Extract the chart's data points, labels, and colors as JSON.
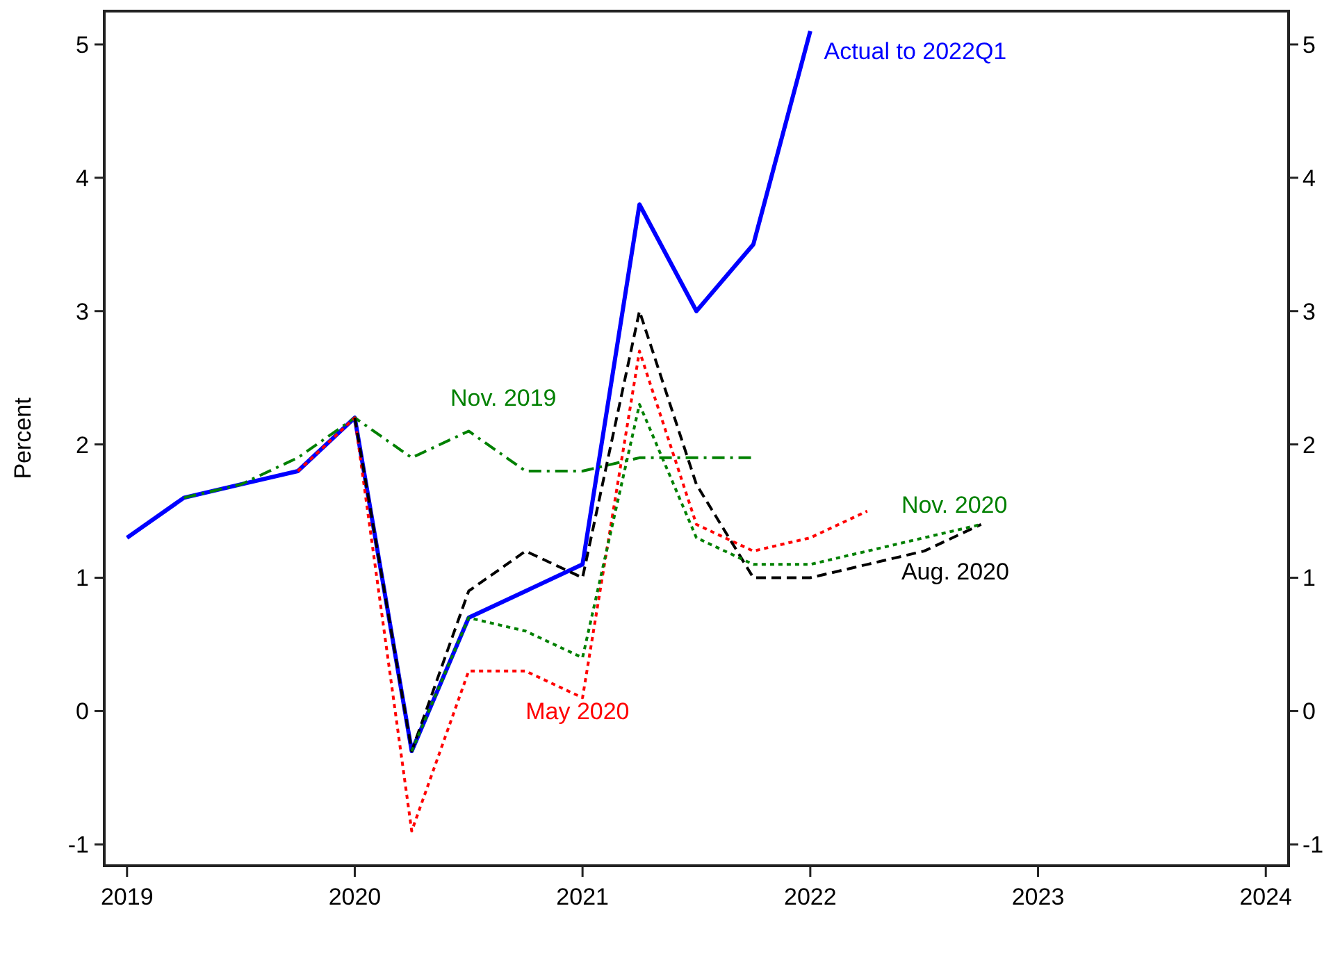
{
  "chart_data": {
    "type": "line",
    "ylabel": "Percent",
    "xlim": [
      2018.9,
      2024.1
    ],
    "xticks": [
      2019,
      2020,
      2021,
      2022,
      2023,
      2024
    ],
    "ylim": [
      -1.16,
      5.25
    ],
    "yticks": [
      -1,
      0,
      1,
      2,
      3,
      4,
      5
    ],
    "y2lim": [
      -1.16,
      5.25
    ],
    "y2ticks": [
      -1,
      0,
      1,
      2,
      3,
      4,
      5
    ],
    "grid": false,
    "marker": "none",
    "series": [
      {
        "name": "Nov. 2019",
        "color": "#008000",
        "line_style": "dashdot",
        "x": [
          2019.25,
          2019.5,
          2019.75,
          2020,
          2020.25,
          2020.5,
          2020.75,
          2021,
          2021.25,
          2021.5,
          2021.75
        ],
        "values": [
          1.6,
          1.7,
          1.9,
          2.2,
          1.9,
          2.1,
          1.8,
          1.8,
          1.9,
          1.9,
          1.9
        ]
      },
      {
        "name": "May 2020",
        "color": "#ff0000",
        "line_style": "dotted",
        "x": [
          2019.75,
          2020,
          2020.25,
          2020.5,
          2020.75,
          2021,
          2021.25,
          2021.5,
          2021.75,
          2022,
          2022.25
        ],
        "values": [
          1.8,
          2.2,
          -0.9,
          0.3,
          0.3,
          0.1,
          2.7,
          1.4,
          1.2,
          1.3,
          1.5
        ]
      },
      {
        "name": "Aug. 2020",
        "color": "#000000",
        "line_style": "dashed",
        "x": [
          2020,
          2020.25,
          2020.5,
          2020.75,
          2021,
          2021.25,
          2021.5,
          2021.75,
          2022,
          2022.25,
          2022.5,
          2022.75
        ],
        "values": [
          2.2,
          -0.3,
          0.9,
          1.2,
          1.0,
          3.0,
          1.7,
          1.0,
          1.0,
          1.1,
          1.2,
          1.4
        ]
      },
      {
        "name": "Nov. 2020",
        "color": "#008000",
        "line_style": "dotted",
        "x": [
          2020.25,
          2020.5,
          2020.75,
          2021,
          2021.25,
          2021.5,
          2021.75,
          2022,
          2022.25,
          2022.5,
          2022.75
        ],
        "values": [
          -0.3,
          0.7,
          0.6,
          0.4,
          2.3,
          1.3,
          1.1,
          1.1,
          1.2,
          1.3,
          1.4
        ]
      },
      {
        "name": "Actual to 2022Q1",
        "color": "#0000ff",
        "line_style": "solid",
        "x": [
          2019,
          2019.25,
          2019.5,
          2019.75,
          2020,
          2020.25,
          2020.5,
          2020.75,
          2021,
          2021.25,
          2021.5,
          2021.75,
          2022
        ],
        "values": [
          1.3,
          1.6,
          1.7,
          1.8,
          2.2,
          -0.3,
          0.7,
          0.9,
          1.1,
          3.8,
          3.0,
          3.5,
          5.1
        ]
      }
    ]
  }
}
